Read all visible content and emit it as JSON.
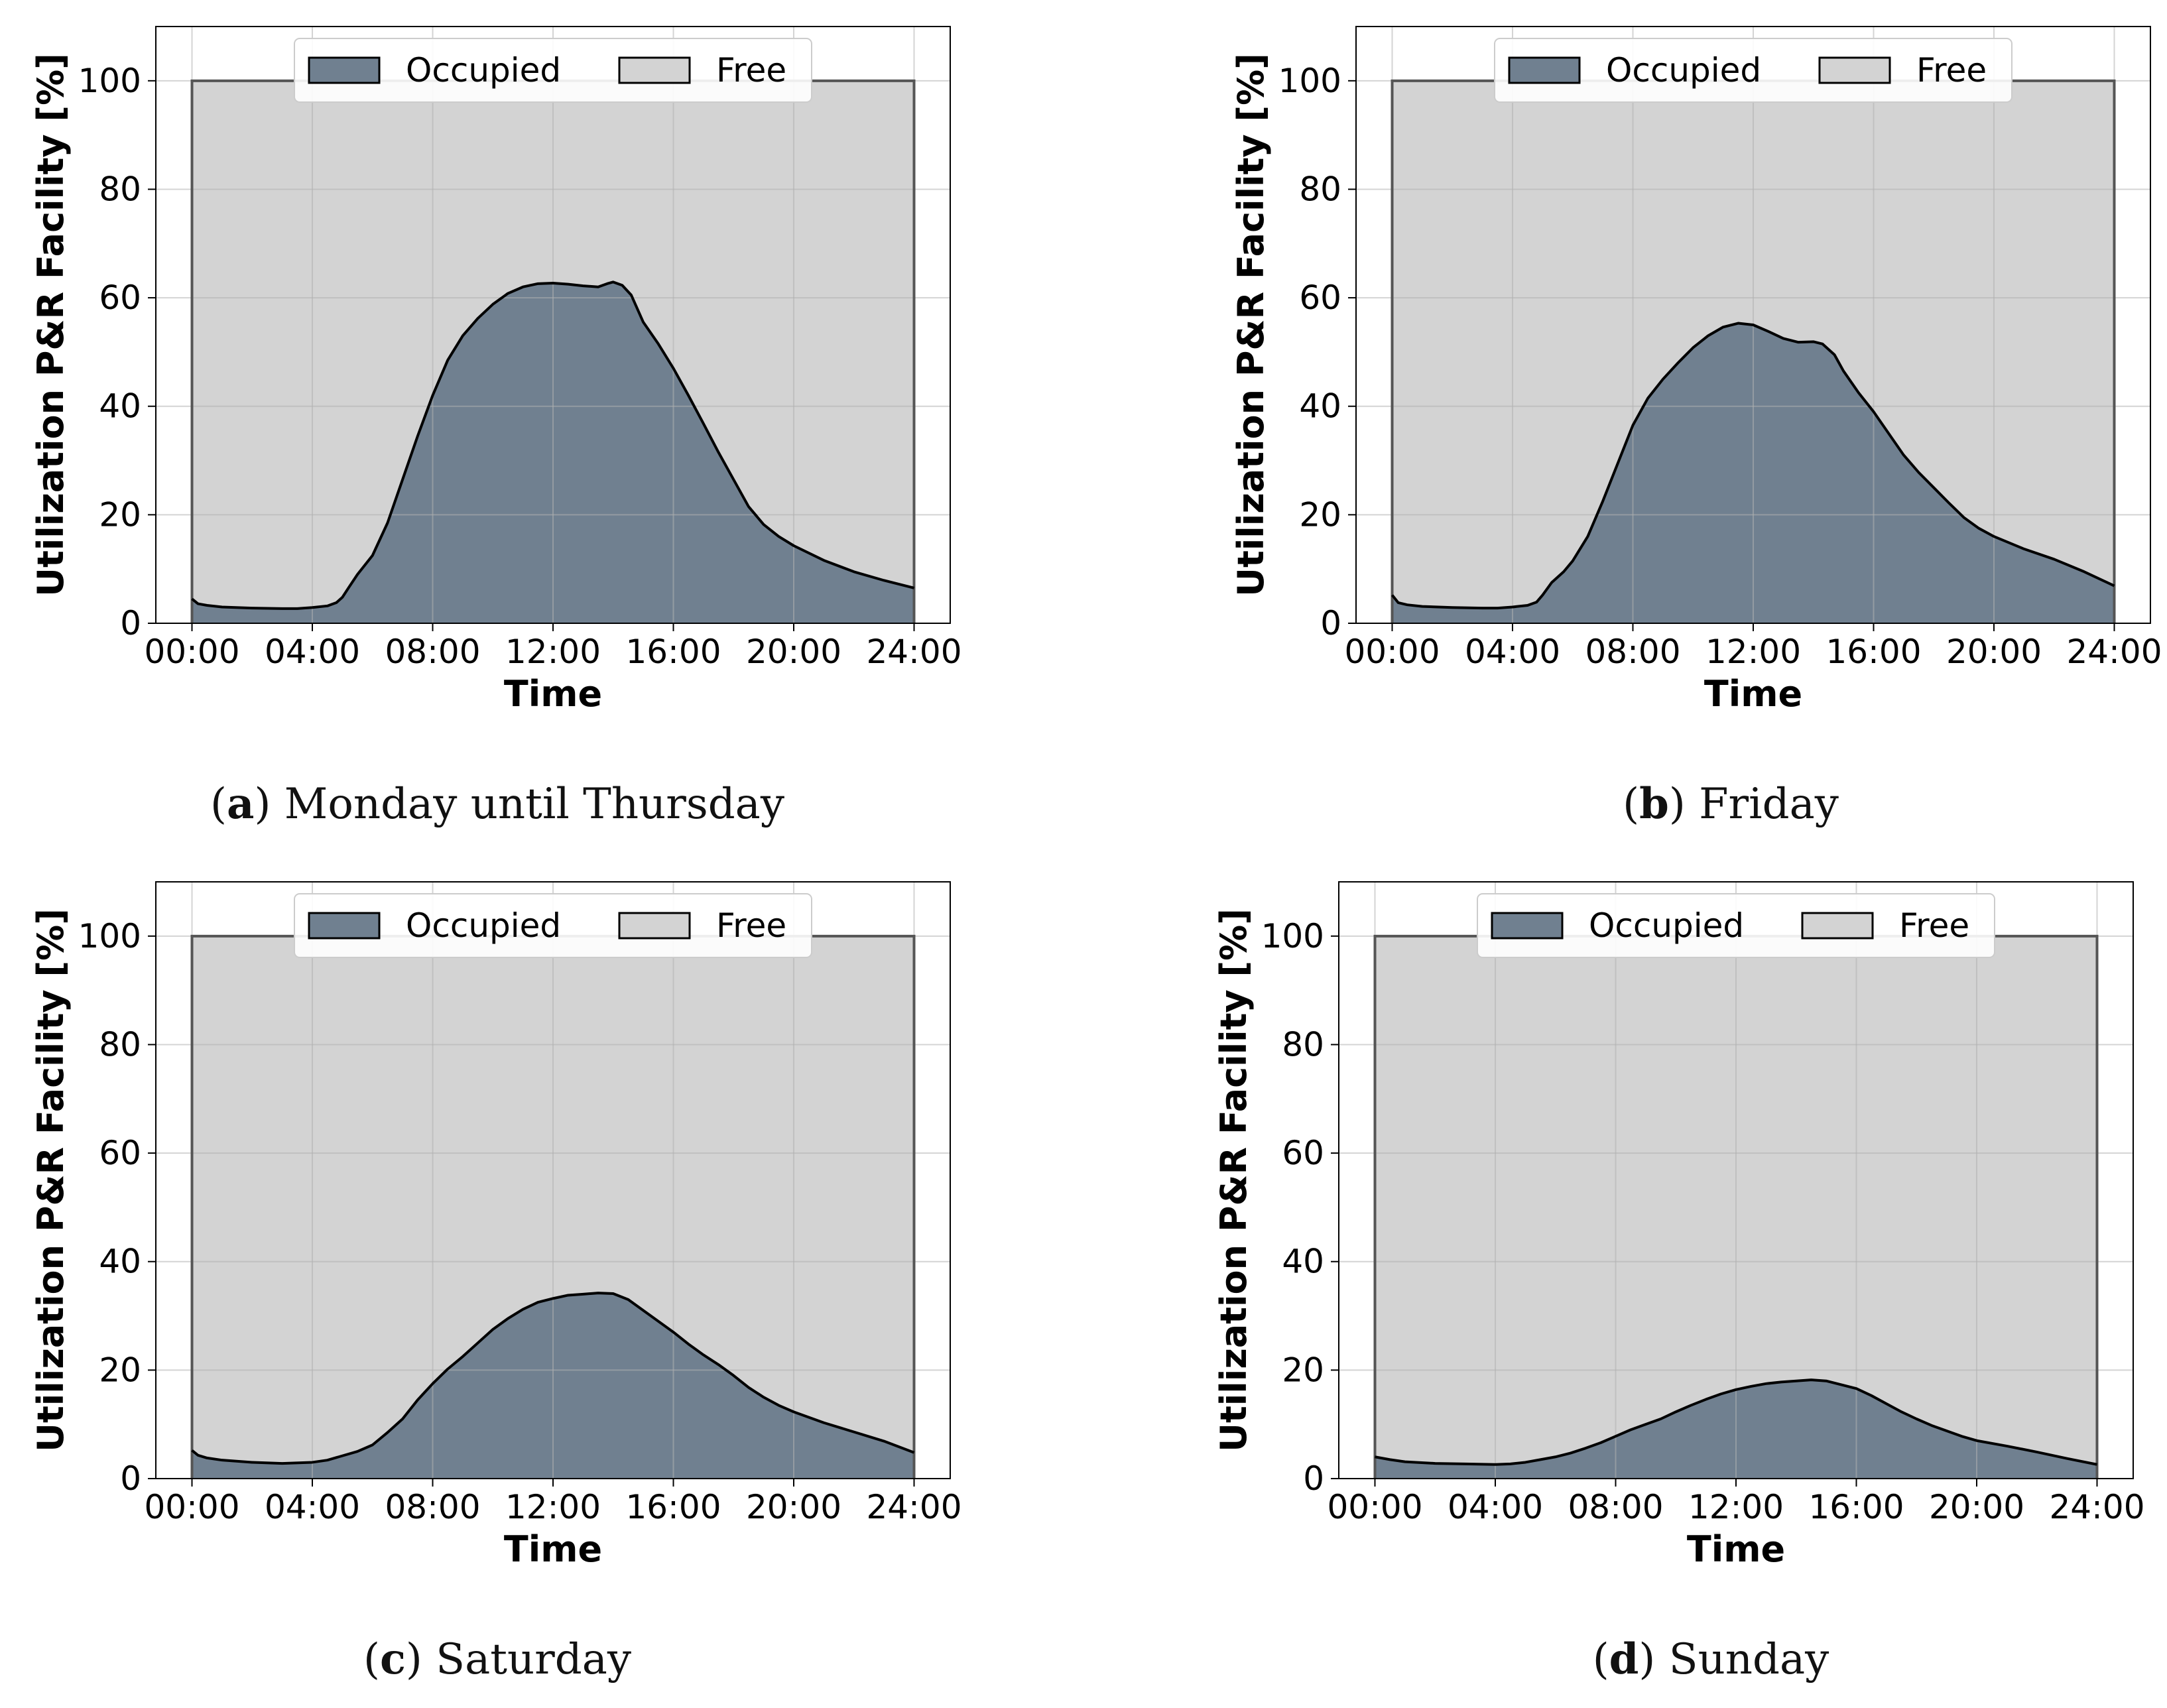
{
  "chart_data": [
    {
      "type": "area",
      "panel_label": "a",
      "caption": "Monday until Thursday",
      "xlabel": "Time",
      "ylabel": "Utilization P&R Facility [%]",
      "xlim": [
        0,
        24
      ],
      "ylim": [
        0,
        110
      ],
      "xticks": [
        0,
        4,
        8,
        12,
        16,
        20,
        24
      ],
      "xtick_labels": [
        "00:00",
        "04:00",
        "08:00",
        "12:00",
        "16:00",
        "20:00",
        "24:00"
      ],
      "yticks": [
        0,
        20,
        40,
        60,
        80,
        100
      ],
      "ytick_labels": [
        "0",
        "20",
        "40",
        "60",
        "80",
        "100"
      ],
      "grid": true,
      "legend": {
        "position": "top-center",
        "entries": [
          "Occupied",
          "Free"
        ]
      },
      "capacity": 100,
      "series": [
        {
          "name": "Occupied",
          "x": [
            0,
            0.2,
            0.5,
            1,
            2,
            3,
            3.5,
            4,
            4.5,
            4.8,
            5,
            5.2,
            5.5,
            6,
            6.5,
            7,
            7.5,
            8,
            8.5,
            9,
            9.5,
            10,
            10.5,
            11,
            11.5,
            12,
            12.5,
            13,
            13.5,
            13.8,
            14,
            14.3,
            14.6,
            15,
            15.5,
            16,
            16.5,
            17,
            17.5,
            18,
            18.5,
            19,
            19.5,
            20,
            21,
            22,
            23,
            24
          ],
          "y": [
            4.5,
            3.6,
            3.3,
            3.0,
            2.8,
            2.7,
            2.7,
            2.9,
            3.2,
            3.8,
            4.8,
            6.5,
            9.0,
            12.5,
            18.5,
            26.5,
            34.5,
            42.0,
            48.5,
            53.0,
            56.2,
            58.8,
            60.8,
            62.0,
            62.6,
            62.7,
            62.5,
            62.2,
            62.0,
            62.6,
            62.9,
            62.3,
            60.5,
            55.5,
            51.5,
            47.0,
            42.0,
            36.8,
            31.5,
            26.5,
            21.5,
            18.2,
            16.0,
            14.3,
            11.6,
            9.5,
            7.9,
            6.5
          ]
        },
        {
          "name": "Free",
          "values": "100 - Occupied"
        }
      ],
      "colors": {
        "occupied": "#708090",
        "free": "#d3d3d3"
      }
    },
    {
      "type": "area",
      "panel_label": "b",
      "caption": "Friday",
      "xlabel": "Time",
      "ylabel": "Utilization P&R Facility [%]",
      "xlim": [
        0,
        24
      ],
      "ylim": [
        0,
        110
      ],
      "xticks": [
        0,
        4,
        8,
        12,
        16,
        20,
        24
      ],
      "xtick_labels": [
        "00:00",
        "04:00",
        "08:00",
        "12:00",
        "16:00",
        "20:00",
        "24:00"
      ],
      "yticks": [
        0,
        20,
        40,
        60,
        80,
        100
      ],
      "ytick_labels": [
        "0",
        "20",
        "40",
        "60",
        "80",
        "100"
      ],
      "grid": true,
      "legend": {
        "position": "top-center",
        "entries": [
          "Occupied",
          "Free"
        ]
      },
      "capacity": 100,
      "series": [
        {
          "name": "Occupied",
          "x": [
            0,
            0.2,
            0.5,
            1,
            2,
            3,
            3.5,
            4,
            4.5,
            4.8,
            5,
            5.3,
            5.7,
            6,
            6.5,
            7,
            7.5,
            8,
            8.5,
            9,
            9.5,
            10,
            10.5,
            11,
            11.5,
            12,
            12.5,
            13,
            13.5,
            14,
            14.3,
            14.7,
            15,
            15.5,
            16,
            16.5,
            17,
            17.5,
            18,
            18.5,
            19,
            19.5,
            20,
            21,
            22,
            23,
            24
          ],
          "y": [
            5.2,
            3.8,
            3.4,
            3.1,
            2.9,
            2.8,
            2.8,
            3.0,
            3.3,
            3.9,
            5.2,
            7.5,
            9.5,
            11.5,
            16.0,
            22.5,
            29.5,
            36.5,
            41.5,
            45.0,
            48.0,
            50.8,
            53.0,
            54.6,
            55.3,
            55.0,
            53.8,
            52.5,
            51.8,
            51.9,
            51.5,
            49.5,
            46.5,
            42.5,
            39.0,
            35.0,
            31.0,
            27.8,
            25.0,
            22.2,
            19.5,
            17.5,
            16.0,
            13.7,
            11.8,
            9.5,
            6.9
          ]
        },
        {
          "name": "Free",
          "values": "100 - Occupied"
        }
      ],
      "colors": {
        "occupied": "#708090",
        "free": "#d3d3d3"
      }
    },
    {
      "type": "area",
      "panel_label": "c",
      "caption": "Saturday",
      "xlabel": "Time",
      "ylabel": "Utilization P&R Facility [%]",
      "xlim": [
        0,
        24
      ],
      "ylim": [
        0,
        110
      ],
      "xticks": [
        0,
        4,
        8,
        12,
        16,
        20,
        24
      ],
      "xtick_labels": [
        "00:00",
        "04:00",
        "08:00",
        "12:00",
        "16:00",
        "20:00",
        "24:00"
      ],
      "yticks": [
        0,
        20,
        40,
        60,
        80,
        100
      ],
      "ytick_labels": [
        "0",
        "20",
        "40",
        "60",
        "80",
        "100"
      ],
      "grid": true,
      "legend": {
        "position": "top-center",
        "entries": [
          "Occupied",
          "Free"
        ]
      },
      "capacity": 100,
      "series": [
        {
          "name": "Occupied",
          "x": [
            0,
            0.2,
            0.5,
            1,
            2,
            3,
            4,
            4.5,
            5,
            5.5,
            6,
            6.5,
            7,
            7.5,
            8,
            8.5,
            9,
            9.5,
            10,
            10.5,
            11,
            11.5,
            12,
            12.5,
            13,
            13.5,
            14,
            14.5,
            15,
            15.5,
            16,
            16.5,
            17,
            17.5,
            18,
            18.5,
            19,
            19.5,
            20,
            21,
            22,
            23,
            24
          ],
          "y": [
            5.2,
            4.3,
            3.8,
            3.4,
            3.0,
            2.8,
            3.0,
            3.4,
            4.2,
            5.0,
            6.2,
            8.5,
            11.0,
            14.5,
            17.5,
            20.2,
            22.5,
            25.0,
            27.5,
            29.5,
            31.2,
            32.5,
            33.2,
            33.8,
            34.0,
            34.2,
            34.1,
            33.0,
            31.0,
            29.0,
            27.0,
            24.8,
            22.8,
            21.0,
            19.0,
            16.8,
            15.0,
            13.5,
            12.3,
            10.3,
            8.6,
            6.9,
            4.8
          ]
        },
        {
          "name": "Free",
          "values": "100 - Occupied"
        }
      ],
      "colors": {
        "occupied": "#708090",
        "free": "#d3d3d3"
      }
    },
    {
      "type": "area",
      "panel_label": "d",
      "caption": "Sunday",
      "xlabel": "Time",
      "ylabel": "Utilization P&R Facility [%]",
      "xlim": [
        0,
        24
      ],
      "ylim": [
        0,
        110
      ],
      "xticks": [
        0,
        4,
        8,
        12,
        16,
        20,
        24
      ],
      "xtick_labels": [
        "00:00",
        "04:00",
        "08:00",
        "12:00",
        "16:00",
        "20:00",
        "24:00"
      ],
      "yticks": [
        0,
        20,
        40,
        60,
        80,
        100
      ],
      "ytick_labels": [
        "0",
        "20",
        "40",
        "60",
        "80",
        "100"
      ],
      "grid": true,
      "legend": {
        "position": "top-center",
        "entries": [
          "Occupied",
          "Free"
        ]
      },
      "capacity": 100,
      "series": [
        {
          "name": "Occupied",
          "x": [
            0,
            0.5,
            1,
            2,
            3,
            4,
            4.5,
            5,
            5.5,
            6,
            6.5,
            7,
            7.5,
            8,
            8.5,
            9,
            9.5,
            10,
            10.5,
            11,
            11.5,
            12,
            12.5,
            13,
            13.5,
            14,
            14.5,
            15,
            15.5,
            16,
            16.5,
            17,
            17.5,
            18,
            18.5,
            19,
            19.5,
            20,
            21,
            22,
            23,
            24
          ],
          "y": [
            4.0,
            3.5,
            3.1,
            2.8,
            2.7,
            2.6,
            2.7,
            3.0,
            3.5,
            4.0,
            4.7,
            5.6,
            6.6,
            7.8,
            9.0,
            10.0,
            11.0,
            12.3,
            13.5,
            14.6,
            15.6,
            16.4,
            17.0,
            17.5,
            17.8,
            18.0,
            18.2,
            18.0,
            17.3,
            16.6,
            15.3,
            13.8,
            12.3,
            11.0,
            9.8,
            8.8,
            7.8,
            7.0,
            6.0,
            4.9,
            3.7,
            2.6
          ]
        },
        {
          "name": "Free",
          "values": "100 - Occupied"
        }
      ],
      "colors": {
        "occupied": "#708090",
        "free": "#d3d3d3"
      }
    }
  ]
}
